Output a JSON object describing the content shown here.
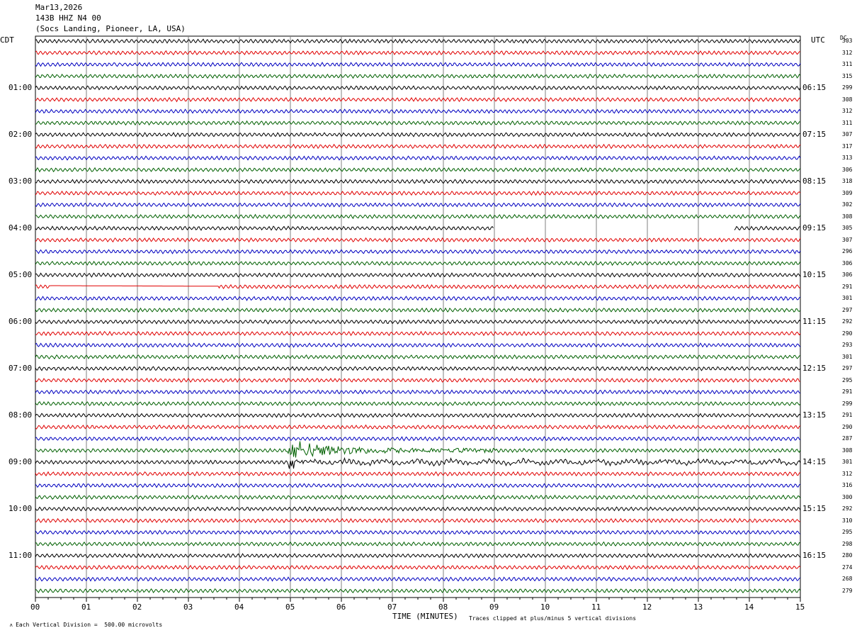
{
  "header": {
    "date": "Mar13,2026",
    "channel": "143B HHZ N4 00",
    "location": "(Socs Landing, Pioneer, LA, USA)"
  },
  "left_axis_label": "CDT",
  "right_axis_label": "UTC",
  "dc_label": "DC",
  "footer": {
    "scale_note": "Each Vertical Division =  500.00 microvolts",
    "xlabel": "TIME (MINUTES)",
    "clip_note": "Traces clipped at plus/minus 5 vertical divisions"
  },
  "colors": {
    "trace_cycle": [
      "#000000",
      "#e00000",
      "#0000c0",
      "#006000"
    ],
    "grid": "#808080"
  },
  "chart_data": {
    "type": "line",
    "title": "143B HHZ N4 00",
    "xlabel": "TIME (MINUTES)",
    "x_ticks": [
      "00",
      "01",
      "02",
      "03",
      "04",
      "05",
      "06",
      "07",
      "08",
      "09",
      "10",
      "11",
      "12",
      "13",
      "14",
      "15"
    ],
    "xlim": [
      0,
      15
    ],
    "cdt_hour_labels": [
      "01:00",
      "02:00",
      "03:00",
      "04:00",
      "05:00",
      "06:00",
      "07:00",
      "08:00",
      "09:00",
      "10:00",
      "11:00"
    ],
    "utc_hour_labels": [
      "06:15",
      "07:15",
      "08:15",
      "09:15",
      "10:15",
      "11:15",
      "12:15",
      "13:15",
      "14:15",
      "15:15",
      "16:15"
    ],
    "dc_offsets": [
      303,
      312,
      311,
      315,
      299,
      308,
      312,
      311,
      307,
      317,
      313,
      306,
      318,
      309,
      302,
      308,
      305,
      307,
      296,
      306,
      306,
      291,
      301,
      297,
      292,
      290,
      293,
      301,
      297,
      295,
      291,
      299,
      291,
      290,
      287,
      308,
      301,
      312,
      316,
      300,
      292,
      310,
      295,
      298,
      280,
      274,
      268,
      279
    ],
    "row_count": 48,
    "row_interval_minutes": 15,
    "events": [
      {
        "row": 16,
        "type": "data_gap",
        "x_start": 9.0,
        "x_end": 13.7
      },
      {
        "row": 21,
        "type": "flat_segment",
        "x_start": 0.3,
        "x_end": 3.6
      },
      {
        "row": 35,
        "type": "earthquake",
        "x_start": 4.95,
        "x_end": 9.0,
        "peak_minute": 5.0
      },
      {
        "row": 36,
        "type": "earthquake_coda",
        "x_start": 4.95,
        "x_end": 15.0
      }
    ]
  }
}
